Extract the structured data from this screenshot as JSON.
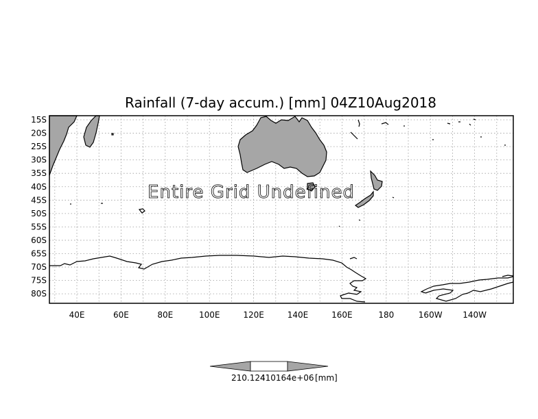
{
  "title": "Rainfall (7-day accum.) [mm] 04Z10Aug2018",
  "overlay_text": "Entire Grid Undefined",
  "lat_labels": [
    "15S",
    "20S",
    "25S",
    "30S",
    "35S",
    "40S",
    "45S",
    "50S",
    "55S",
    "60S",
    "65S",
    "70S",
    "75S",
    "80S"
  ],
  "lon_labels": [
    "40E",
    "60E",
    "80E",
    "100E",
    "120E",
    "140E",
    "160E",
    "180",
    "160W",
    "140W"
  ],
  "colorbar": {
    "min_label": "210.124",
    "max_label": "410164e+06",
    "unit_label": "[mm]"
  },
  "colors": {
    "land": "#a6a6a6",
    "frame": "#000000",
    "grid": "#9a9a9a"
  }
}
